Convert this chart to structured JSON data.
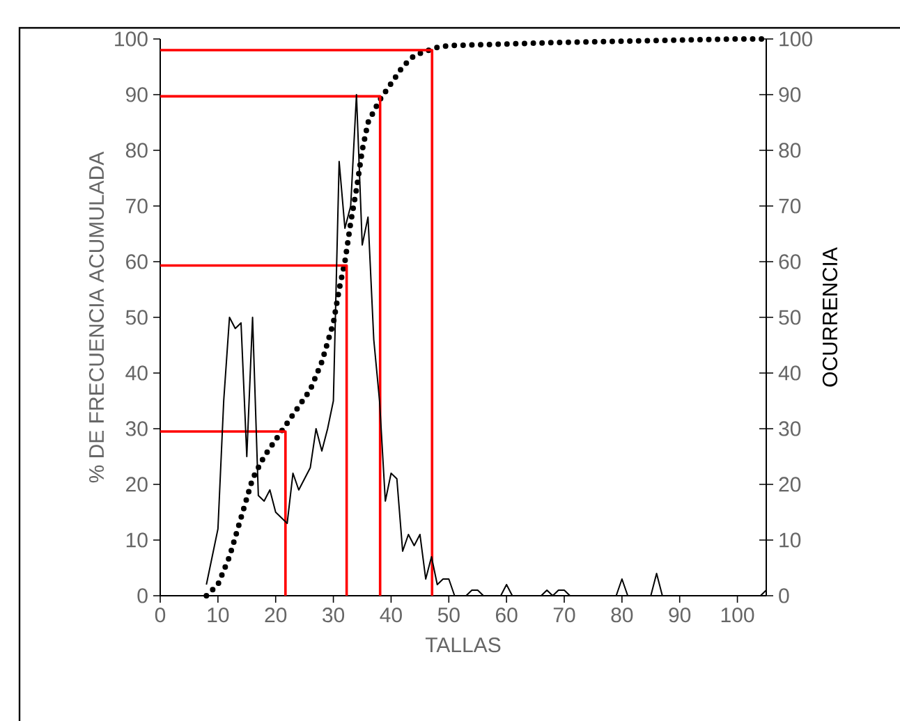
{
  "chart_data": {
    "type": "line",
    "xlabel": "TALLAS",
    "ylabel": "% DE FRECUENCIA ACUMULADA",
    "y2label": "OCURRENCIA",
    "xlim": [
      0,
      105
    ],
    "xticks": [
      0,
      10,
      20,
      30,
      40,
      50,
      60,
      70,
      80,
      90,
      100
    ],
    "ylim": [
      0,
      100
    ],
    "yticks": [
      0,
      10,
      20,
      30,
      40,
      50,
      60,
      70,
      80,
      90,
      100
    ],
    "y2lim": [
      0,
      100
    ],
    "y2ticks": [
      0,
      10,
      20,
      30,
      40,
      50,
      60,
      70,
      80,
      90,
      100
    ],
    "grid": false,
    "marker": "none",
    "series": [
      {
        "color": "#000000",
        "line_style": "solid",
        "axis": "y2",
        "x": [
          8,
          9,
          10,
          11,
          12,
          13,
          14,
          15,
          16,
          17,
          18,
          19,
          20,
          21,
          22,
          23,
          24,
          25,
          26,
          27,
          28,
          29,
          30,
          31,
          32,
          33,
          34,
          35,
          36,
          37,
          38,
          39,
          40,
          41,
          42,
          43,
          44,
          45,
          46,
          47,
          48,
          49,
          50,
          51,
          52,
          53,
          54,
          55,
          56,
          57,
          58,
          59,
          60,
          61,
          62,
          63,
          64,
          65,
          66,
          67,
          68,
          69,
          70,
          71,
          72,
          73,
          74,
          75,
          76,
          77,
          78,
          79,
          80,
          81,
          82,
          83,
          84,
          85,
          86,
          87,
          88,
          89,
          90,
          91,
          92,
          93,
          94,
          95,
          96,
          97,
          98,
          99,
          100,
          101,
          102,
          103,
          104,
          105
        ],
        "values": [
          2,
          7,
          12,
          35,
          50,
          48,
          49,
          25,
          50,
          18,
          17,
          19,
          15,
          14,
          13,
          22,
          19,
          21,
          23,
          30,
          26,
          30,
          35,
          78,
          66,
          70,
          90,
          63,
          68,
          46,
          35,
          17,
          22,
          21,
          8,
          11,
          9,
          11,
          3,
          7,
          2,
          3,
          3,
          0,
          0,
          0,
          1,
          1,
          0,
          0,
          0,
          0,
          2,
          0,
          0,
          0,
          0,
          0,
          0,
          1,
          0,
          1,
          1,
          0,
          0,
          0,
          0,
          0,
          0,
          0,
          0,
          0,
          3,
          0,
          0,
          0,
          0,
          0,
          4,
          0,
          0,
          0,
          0,
          0,
          0,
          0,
          0,
          0,
          0,
          0,
          0,
          0,
          0,
          0,
          0,
          0,
          0,
          1
        ]
      },
      {
        "color": "#000000",
        "line_style": "dotted",
        "x": [
          8,
          10,
          12,
          14,
          16,
          18,
          20,
          22,
          24,
          26,
          28,
          30,
          31,
          32,
          33,
          34,
          35,
          36,
          37,
          38,
          40,
          42,
          44,
          46,
          48,
          50,
          60,
          70,
          80,
          90,
          100,
          105
        ],
        "values": [
          0,
          2,
          7,
          14,
          21,
          25,
          28,
          31,
          34,
          37,
          42,
          49,
          55,
          60,
          67,
          73,
          80,
          85,
          87,
          89,
          92,
          95,
          97,
          97.8,
          98.5,
          98.8,
          99.1,
          99.4,
          99.6,
          99.8,
          100,
          100
        ]
      },
      {
        "color": "#ff0000",
        "line_style": "solid",
        "x": [
          0,
          21.7,
          21.7
        ],
        "values": [
          29.5,
          29.5,
          0
        ]
      },
      {
        "color": "#ff0000",
        "line_style": "solid",
        "x": [
          0,
          32.3,
          32.3
        ],
        "values": [
          59.3,
          59.3,
          0
        ]
      },
      {
        "color": "#ff0000",
        "line_style": "solid",
        "x": [
          0,
          38.1,
          38.1
        ],
        "values": [
          89.7,
          89.7,
          0
        ]
      },
      {
        "color": "#ff0000",
        "line_style": "solid",
        "x": [
          0,
          47.1,
          47.1
        ],
        "values": [
          98,
          98,
          0
        ]
      }
    ]
  }
}
